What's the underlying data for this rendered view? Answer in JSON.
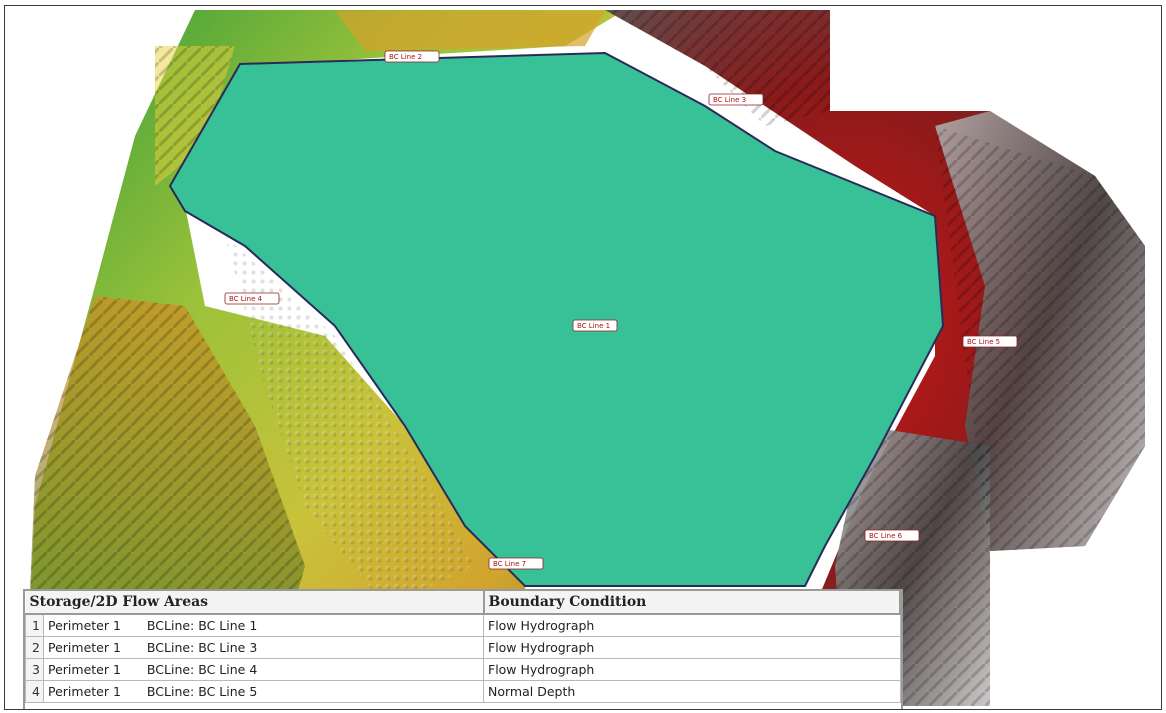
{
  "map": {
    "flow_area_label": "BC Line 1",
    "bc_labels": [
      "BC Line 2",
      "BC Line 3",
      "BC Line 4",
      "BC Line 5",
      "BC Line 6",
      "BC Line 7"
    ],
    "flow_area_color": "#38c196"
  },
  "table": {
    "headers": [
      "Storage/2D Flow Areas",
      "Boundary Condition"
    ],
    "rows": [
      {
        "index": "1",
        "area": "Perimeter 1",
        "bcline": "BCLine: BC Line 1",
        "condition": "Flow Hydrograph"
      },
      {
        "index": "2",
        "area": "Perimeter 1",
        "bcline": "BCLine: BC Line 3",
        "condition": "Flow Hydrograph"
      },
      {
        "index": "3",
        "area": "Perimeter 1",
        "bcline": "BCLine: BC Line 4",
        "condition": "Flow Hydrograph"
      },
      {
        "index": "4",
        "area": "Perimeter 1",
        "bcline": "BCLine: BC Line 5",
        "condition": "Normal Depth"
      }
    ]
  }
}
